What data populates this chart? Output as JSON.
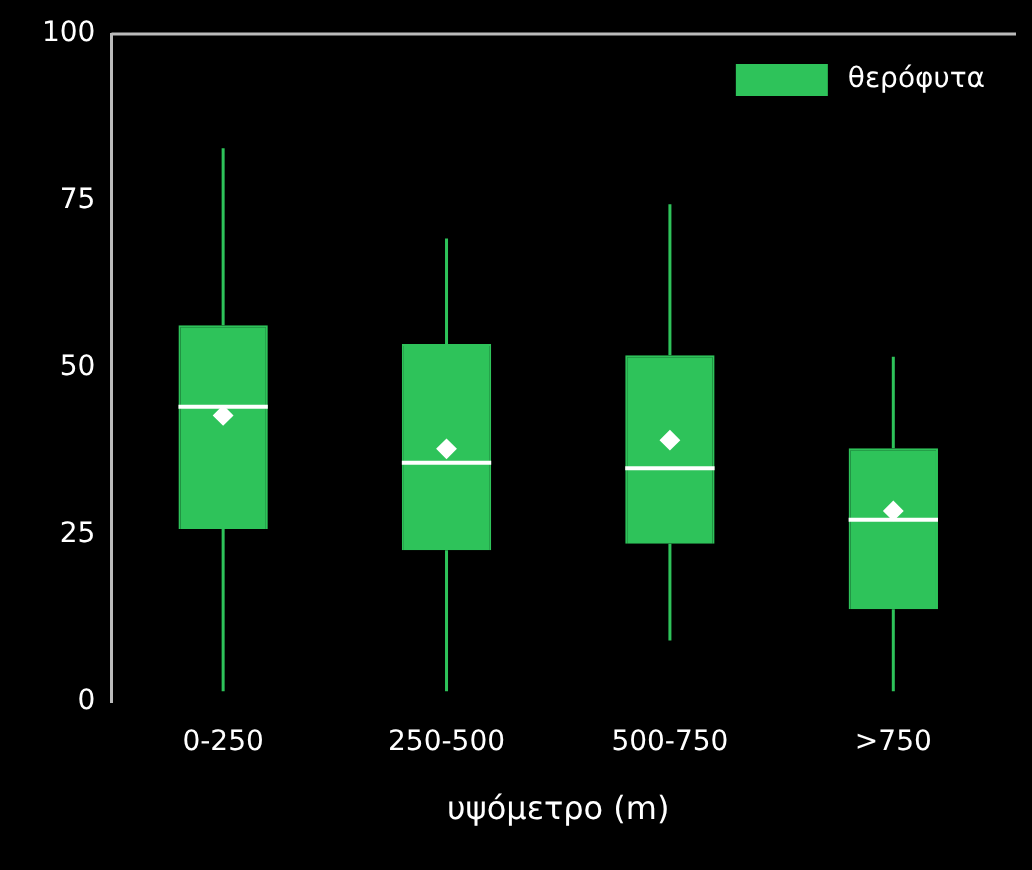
{
  "chart_data": {
    "type": "box",
    "xlabel": "υψόμετρο (m)",
    "categories": [
      "0-250",
      "250-500",
      "500-750",
      ">750"
    ],
    "ylim": [
      0,
      100
    ],
    "yticks": [
      0,
      25,
      50,
      75,
      100
    ],
    "legend": "top right",
    "grid": false,
    "marker": "diamond",
    "series": [
      {
        "name": "θερόφυτα",
        "color": "#2ec35a",
        "boxes": [
          {
            "low": 1.6,
            "q1": 25.9,
            "median": 44.2,
            "q3": 56.4,
            "high": 82.9,
            "mean": 42.9
          },
          {
            "low": 1.6,
            "q1": 22.7,
            "median": 35.8,
            "q3": 53.6,
            "high": 69.4,
            "mean": 37.9
          },
          {
            "low": 9.2,
            "q1": 23.7,
            "median": 35,
            "q3": 51.9,
            "high": 74.5,
            "mean": 39.2
          },
          {
            "low": 1.6,
            "q1": 13.9,
            "median": 27.3,
            "q3": 38,
            "high": 51.7,
            "mean": 28.6
          }
        ]
      }
    ]
  }
}
